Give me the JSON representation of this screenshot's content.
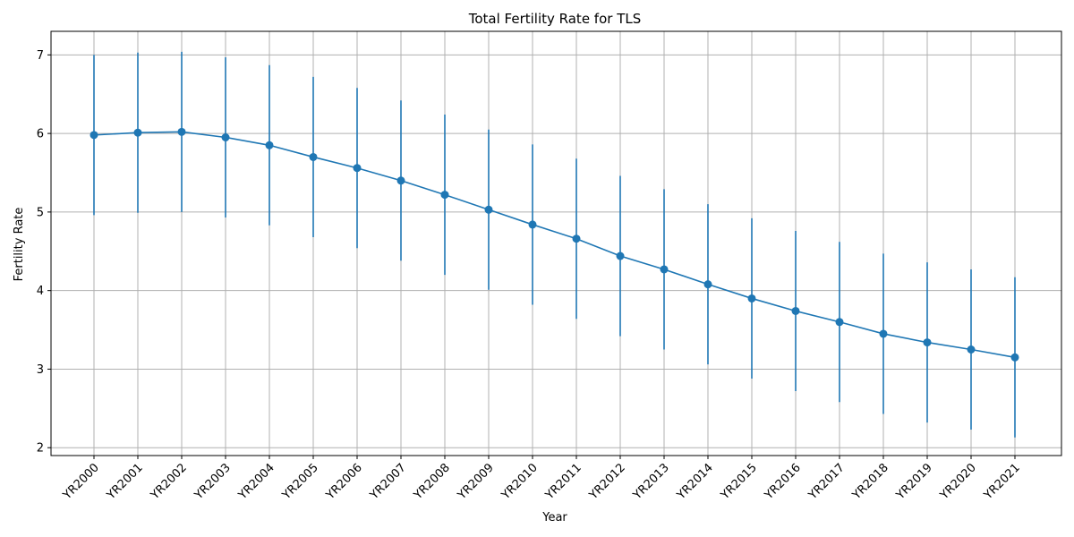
{
  "chart_data": {
    "type": "line",
    "title": "Total Fertility Rate for TLS",
    "xlabel": "Year",
    "ylabel": "Fertility Rate",
    "ylim": [
      1.9,
      7.3
    ],
    "yticks": [
      2,
      3,
      4,
      5,
      6,
      7
    ],
    "grid": true,
    "error_bar_halfwidth": 1.02,
    "color": "#1f77b4",
    "categories": [
      "YR2000",
      "YR2001",
      "YR2002",
      "YR2003",
      "YR2004",
      "YR2005",
      "YR2006",
      "YR2007",
      "YR2008",
      "YR2009",
      "YR2010",
      "YR2011",
      "YR2012",
      "YR2013",
      "YR2014",
      "YR2015",
      "YR2016",
      "YR2017",
      "YR2018",
      "YR2019",
      "YR2020",
      "YR2021"
    ],
    "values": [
      5.98,
      6.01,
      6.02,
      5.95,
      5.85,
      5.7,
      5.56,
      5.4,
      5.22,
      5.03,
      4.84,
      4.66,
      4.44,
      4.27,
      4.08,
      3.9,
      3.74,
      3.6,
      3.45,
      3.34,
      3.25,
      3.15
    ]
  }
}
